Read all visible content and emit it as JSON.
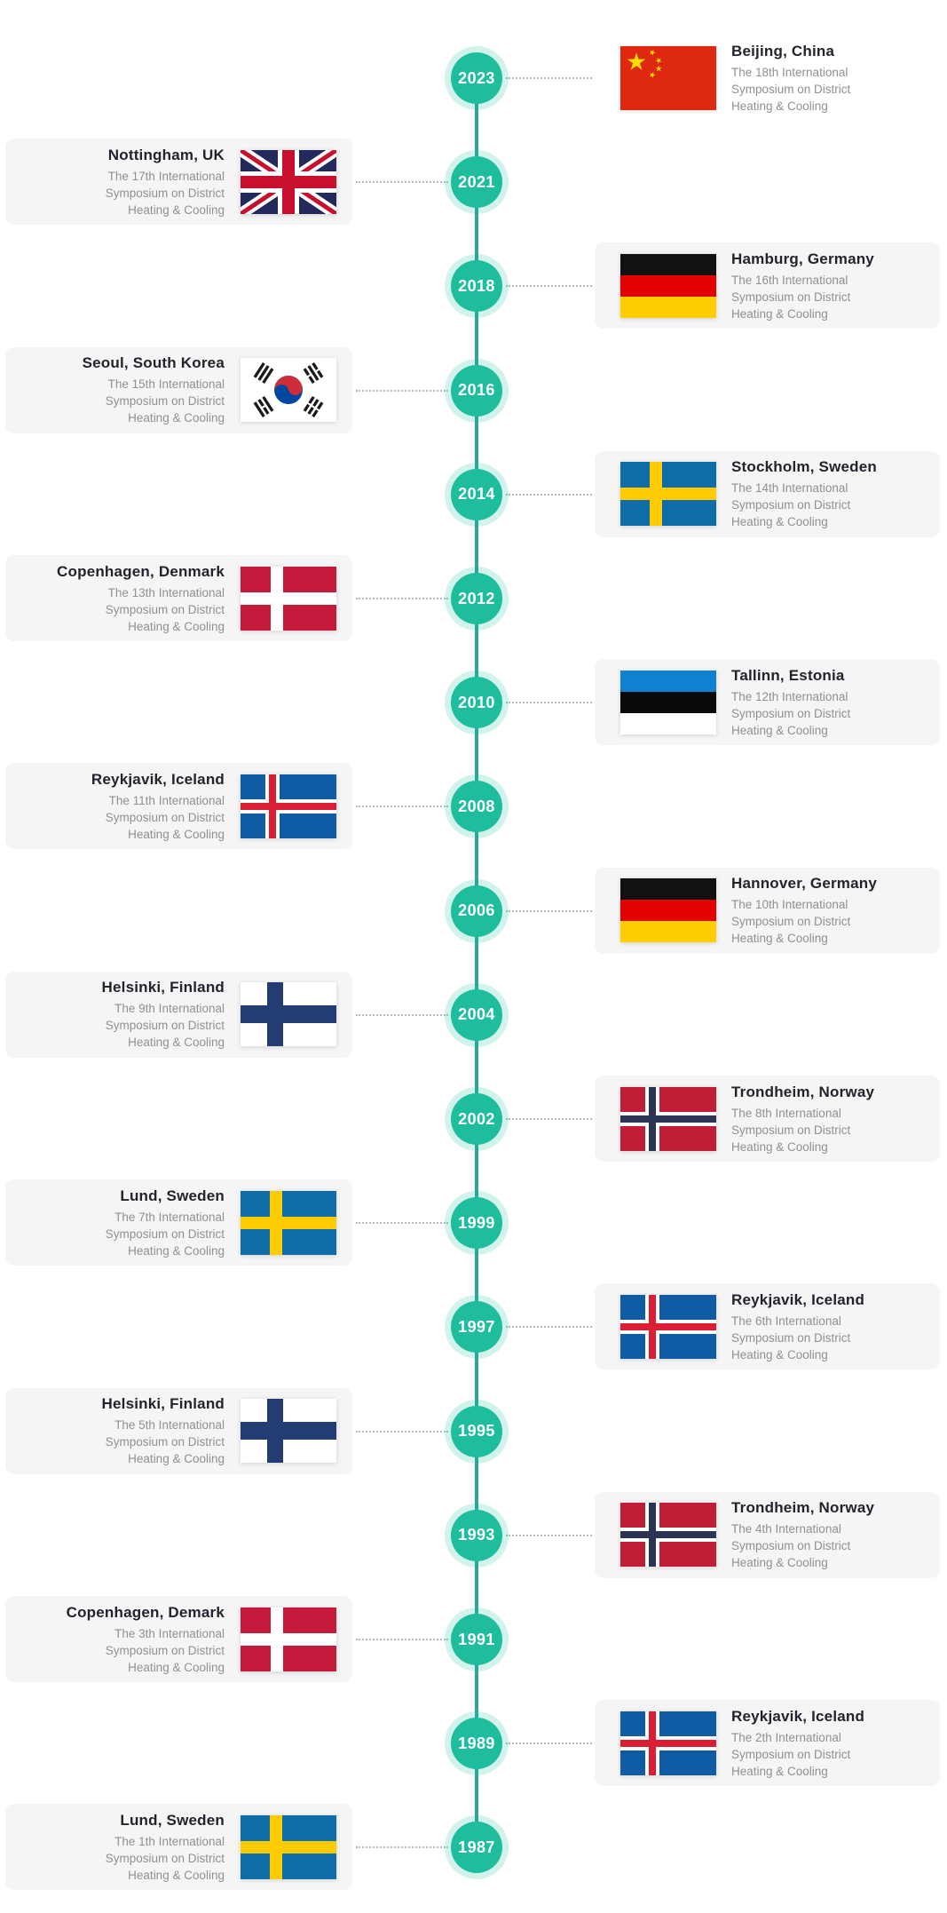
{
  "page": {
    "background": "#ffffff"
  },
  "timeline": {
    "spine_color": "#2aa795",
    "circle_color": "#1dbd9e",
    "circle_ring_color": "rgba(29,189,158,0.20)",
    "dotted_line_color": "#b2bcbc",
    "card_bg_color": "#f5f5f6",
    "title_color": "#23232e",
    "desc_color": "#8f9094"
  },
  "entries": [
    {
      "year": "2023",
      "side": "right",
      "card_bg": false,
      "flag": "china",
      "title": "Beijing, China",
      "desc_lines": [
        "The 18th International",
        "Symposium on District",
        "Heating & Cooling"
      ]
    },
    {
      "year": "2021",
      "side": "left",
      "card_bg": true,
      "flag": "uk",
      "title": "Nottingham, UK",
      "desc_lines": [
        "The 17th International",
        "Symposium on District",
        "Heating & Cooling"
      ]
    },
    {
      "year": "2018",
      "side": "right",
      "card_bg": true,
      "flag": "germany",
      "title": "Hamburg, Germany",
      "desc_lines": [
        "The 16th International",
        "Symposium on District",
        "Heating & Cooling"
      ]
    },
    {
      "year": "2016",
      "side": "left",
      "card_bg": true,
      "flag": "southkorea",
      "title": "Seoul, South Korea",
      "desc_lines": [
        "The 15th International",
        "Symposium on District",
        "Heating & Cooling"
      ]
    },
    {
      "year": "2014",
      "side": "right",
      "card_bg": true,
      "flag": "sweden",
      "title": "Stockholm, Sweden",
      "desc_lines": [
        "The 14th International",
        "Symposium on District",
        "Heating & Cooling"
      ]
    },
    {
      "year": "2012",
      "side": "left",
      "card_bg": true,
      "flag": "denmark",
      "title": "Copenhagen, Denmark",
      "desc_lines": [
        "The 13th International",
        "Symposium on District",
        "Heating & Cooling"
      ]
    },
    {
      "year": "2010",
      "side": "right",
      "card_bg": true,
      "flag": "estonia",
      "title": "Tallinn, Estonia",
      "desc_lines": [
        "The 12th International",
        "Symposium on District",
        "Heating & Cooling"
      ]
    },
    {
      "year": "2008",
      "side": "left",
      "card_bg": true,
      "flag": "iceland",
      "title": "Reykjavik, Iceland",
      "desc_lines": [
        "The 11th International",
        "Symposium on District",
        "Heating & Cooling"
      ]
    },
    {
      "year": "2006",
      "side": "right",
      "card_bg": true,
      "flag": "germany",
      "title": "Hannover, Germany",
      "desc_lines": [
        "The 10th International",
        "Symposium on District",
        "Heating & Cooling"
      ]
    },
    {
      "year": "2004",
      "side": "left",
      "card_bg": true,
      "flag": "finland",
      "title": "Helsinki, Finland",
      "desc_lines": [
        "The 9th International",
        "Symposium on District",
        "Heating & Cooling"
      ]
    },
    {
      "year": "2002",
      "side": "right",
      "card_bg": true,
      "flag": "norway",
      "title": "Trondheim, Norway",
      "desc_lines": [
        "The 8th International",
        "Symposium on District",
        "Heating & Cooling"
      ]
    },
    {
      "year": "1999",
      "side": "left",
      "card_bg": true,
      "flag": "sweden",
      "title": "Lund, Sweden",
      "desc_lines": [
        "The 7th International",
        "Symposium on District",
        "Heating & Cooling"
      ]
    },
    {
      "year": "1997",
      "side": "right",
      "card_bg": true,
      "flag": "iceland",
      "title": "Reykjavik, Iceland",
      "desc_lines": [
        "The 6th International",
        "Symposium on District",
        "Heating & Cooling"
      ]
    },
    {
      "year": "1995",
      "side": "left",
      "card_bg": true,
      "flag": "finland",
      "title": "Helsinki, Finland",
      "desc_lines": [
        "The 5th International",
        "Symposium on District",
        "Heating & Cooling"
      ]
    },
    {
      "year": "1993",
      "side": "right",
      "card_bg": true,
      "flag": "norway",
      "title": "Trondheim, Norway",
      "desc_lines": [
        "The 4th International",
        "Symposium on District",
        "Heating & Cooling"
      ]
    },
    {
      "year": "1991",
      "side": "left",
      "card_bg": true,
      "flag": "denmark",
      "title": "Copenhagen, Demark",
      "desc_lines": [
        "The 3th International",
        "Symposium on District",
        "Heating & Cooling"
      ]
    },
    {
      "year": "1989",
      "side": "right",
      "card_bg": true,
      "flag": "iceland",
      "title": "Reykjavik, Iceland",
      "desc_lines": [
        "The 2th International",
        "Symposium on District",
        "Heating & Cooling"
      ]
    },
    {
      "year": "1987",
      "side": "left",
      "card_bg": true,
      "flag": "sweden",
      "title": "Lund, Sweden",
      "desc_lines": [
        "The 1th International",
        "Symposium on District",
        "Heating & Cooling"
      ]
    }
  ]
}
